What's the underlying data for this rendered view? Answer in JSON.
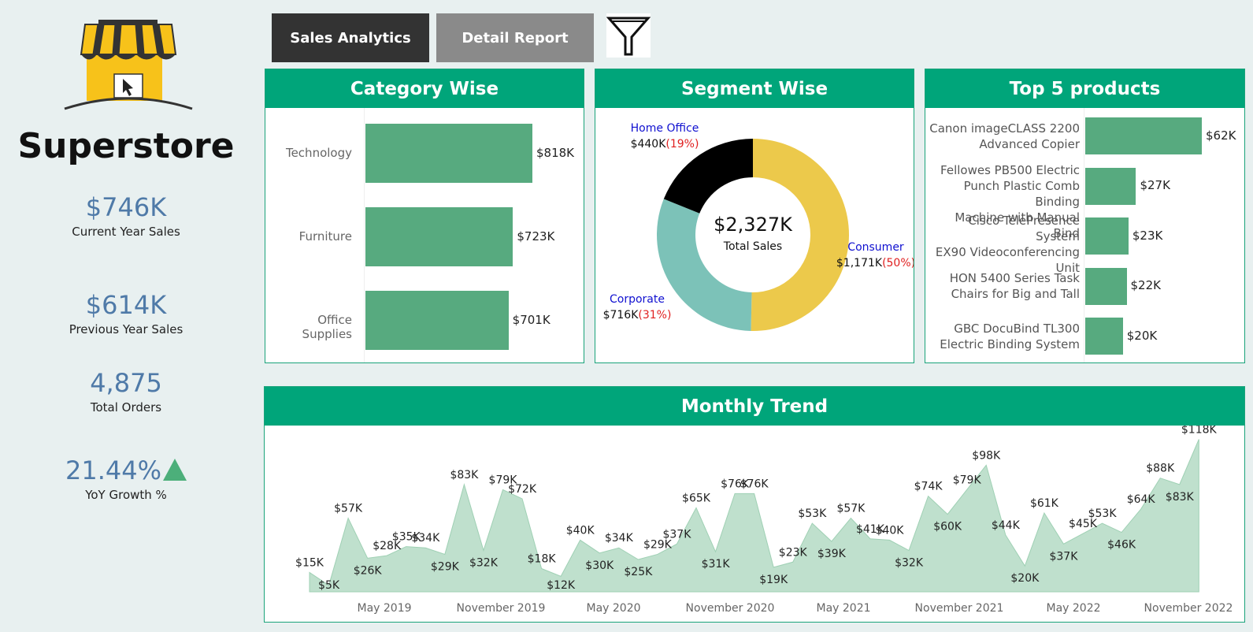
{
  "app": {
    "title": "Superstore"
  },
  "tabs": [
    {
      "label": "Sales Analytics",
      "active": true
    },
    {
      "label": "Detail Report",
      "active": false
    }
  ],
  "kpis": [
    {
      "value": "$746K",
      "label": "Current Year Sales"
    },
    {
      "value": "$614K",
      "label": "Previous Year Sales"
    },
    {
      "value": "4,875",
      "label": "Total Orders"
    },
    {
      "value": "21.44%",
      "label": "YoY Growth %"
    }
  ],
  "colors": {
    "header_green": "#00a57a",
    "bar_green": "#57aa7f",
    "area_green": "#bfe0cd",
    "consumer": "#ecc94b",
    "corporate": "#7cc2b8",
    "home_office": "#000000",
    "pct_red": "#e02020",
    "segment_blue": "#1010d0",
    "kpi_blue": "#4f7aa8"
  },
  "category": {
    "title": "Category Wise",
    "chart_data": {
      "type": "bar",
      "categories": [
        "Technology",
        "Furniture",
        "Office Supplies"
      ],
      "values": [
        818,
        723,
        701
      ],
      "value_labels": [
        "$818K",
        "$723K",
        "$701K"
      ]
    }
  },
  "segment": {
    "title": "Segment Wise",
    "total_value": "$2,327K",
    "total_label": "Total Sales",
    "chart_data": {
      "type": "pie",
      "slices": [
        {
          "name": "Consumer",
          "value": 1171,
          "amount": "$1,171K",
          "pct": "(50%)",
          "color": "#ecc94b"
        },
        {
          "name": "Corporate",
          "value": 716,
          "amount": "$716K",
          "pct": "(31%)",
          "color": "#7cc2b8"
        },
        {
          "name": "Home Office",
          "value": 440,
          "amount": "$440K",
          "pct": "(19%)",
          "color": "#000000"
        }
      ]
    }
  },
  "top5": {
    "title": "Top 5 products",
    "chart_data": {
      "type": "bar",
      "categories": [
        [
          "Canon imageCLASS 2200",
          "Advanced Copier"
        ],
        [
          "Fellowes PB500 Electric",
          "Punch Plastic Comb Binding",
          "Machine with Manual Bind"
        ],
        [
          "Cisco TelePresence System",
          "EX90 Videoconferencing",
          "Unit"
        ],
        [
          "HON 5400 Series Task",
          "Chairs for Big and Tall"
        ],
        [
          "GBC DocuBind TL300",
          "Electric Binding System"
        ]
      ],
      "values": [
        62,
        27,
        23,
        22,
        20
      ],
      "value_labels": [
        "$62K",
        "$27K",
        "$23K",
        "$22K",
        "$20K"
      ]
    }
  },
  "trend": {
    "title": "Monthly Trend",
    "chart_data": {
      "type": "area",
      "x": [
        "2019-01",
        "2019-02",
        "2019-03",
        "2019-04",
        "2019-05",
        "2019-06",
        "2019-07",
        "2019-08",
        "2019-09",
        "2019-10",
        "2019-11",
        "2019-12",
        "2020-01",
        "2020-02",
        "2020-03",
        "2020-04",
        "2020-05",
        "2020-06",
        "2020-07",
        "2020-08",
        "2020-09",
        "2020-10",
        "2020-11",
        "2020-12",
        "2021-01",
        "2021-02",
        "2021-03",
        "2021-04",
        "2021-05",
        "2021-06",
        "2021-07",
        "2021-08",
        "2021-09",
        "2021-10",
        "2021-11",
        "2021-12",
        "2022-01",
        "2022-02",
        "2022-03",
        "2022-04",
        "2022-05",
        "2022-06",
        "2022-07",
        "2022-08",
        "2022-09",
        "2022-10",
        "2022-11",
        "2022-12"
      ],
      "values": [
        15,
        5,
        57,
        26,
        28,
        35,
        34,
        29,
        83,
        32,
        79,
        72,
        18,
        12,
        40,
        30,
        34,
        25,
        29,
        37,
        65,
        31,
        76,
        76,
        19,
        23,
        53,
        39,
        57,
        41,
        40,
        32,
        74,
        60,
        79,
        98,
        44,
        20,
        61,
        37,
        45,
        53,
        46,
        64,
        88,
        83,
        118,
        null
      ],
      "labels": [
        "$15K",
        "$5K",
        "$57K",
        "$26K",
        "$28K",
        "$35K",
        "$34K",
        "$29K",
        "$83K",
        "$32K",
        "$79K",
        "$72K",
        "$18K",
        "$12K",
        "$40K",
        "$30K",
        "$34K",
        "$25K",
        "$29K",
        "$37K",
        "$65K",
        "$31K",
        "$76K",
        "$76K",
        "$19K",
        "$23K",
        "$53K",
        "$39K",
        "$57K",
        "$41K",
        "$40K",
        "$32K",
        "$74K",
        "$60K",
        "$79K",
        "$98K",
        "$44K",
        "$20K",
        "$61K",
        "$37K",
        "$45K",
        "$53K",
        "$46K",
        "$64K",
        "$88K",
        "$83K",
        "$118K",
        ""
      ],
      "x_ticks": [
        "May 2019",
        "November 2019",
        "May 2020",
        "November 2020",
        "May 2021",
        "November 2021",
        "May 2022",
        "November 2022"
      ]
    }
  }
}
